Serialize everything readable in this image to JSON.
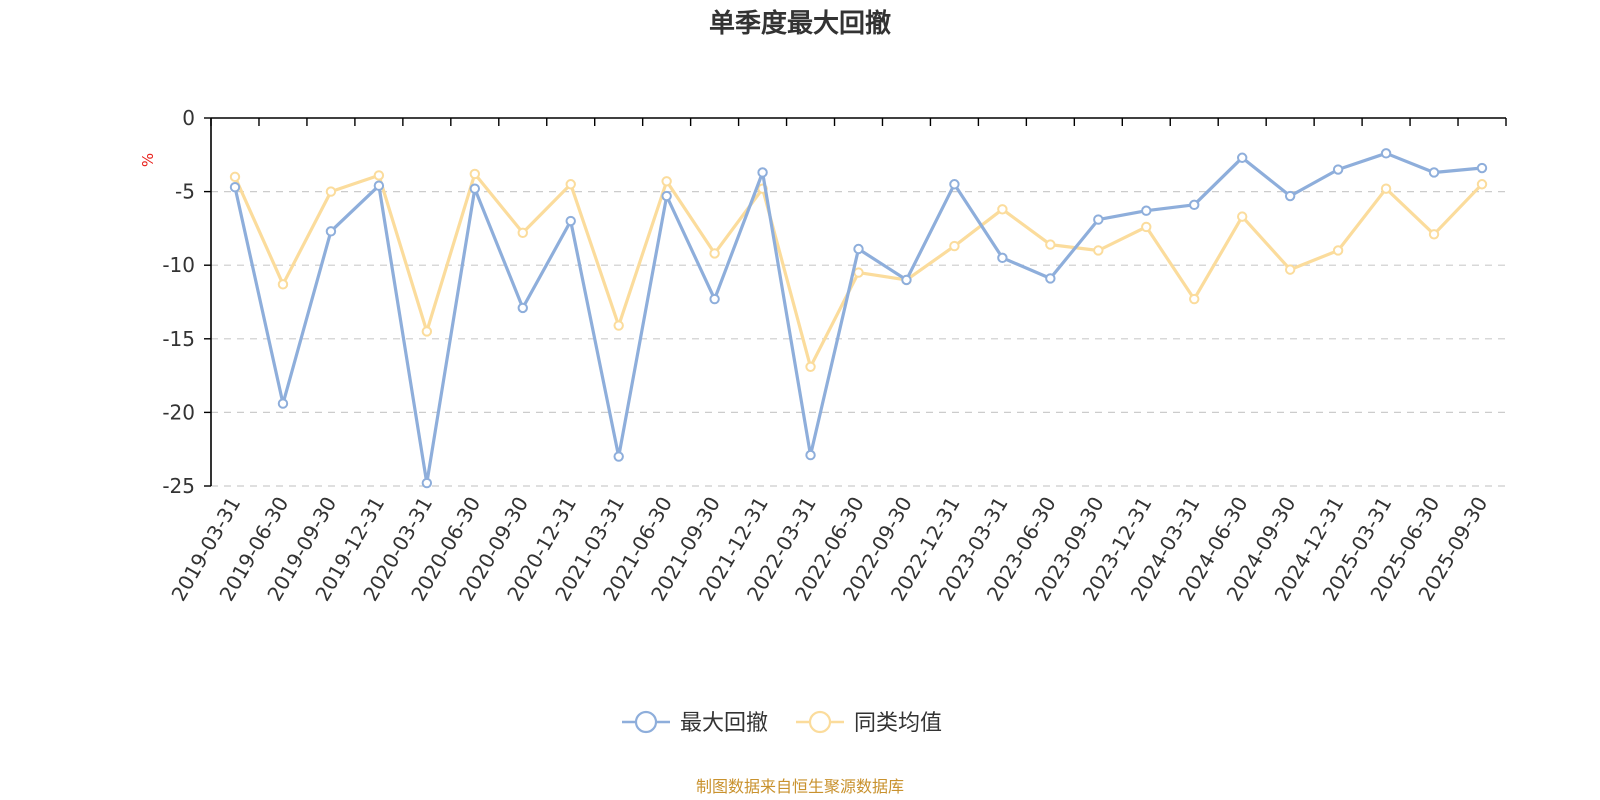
{
  "chart_data": {
    "type": "line",
    "title": "单季度最大回撤",
    "ylabel": "%",
    "ylim": [
      -25,
      0
    ],
    "yticks": [
      0,
      -5,
      -10,
      -15,
      -20,
      -25
    ],
    "grid": true,
    "legend_position": "bottom-center",
    "x": [
      "2019-03-31",
      "2019-06-30",
      "2019-09-30",
      "2019-12-31",
      "2020-03-31",
      "2020-06-30",
      "2020-09-30",
      "2020-12-31",
      "2021-03-31",
      "2021-06-30",
      "2021-09-30",
      "2021-12-31",
      "2022-03-31",
      "2022-06-30",
      "2022-09-30",
      "2022-12-31",
      "2023-03-31",
      "2023-06-30",
      "2023-09-30",
      "2023-12-31",
      "2024-03-31",
      "2024-06-30",
      "2024-09-30",
      "2024-12-31",
      "2025-03-31",
      "2025-06-30",
      "2025-09-30"
    ],
    "series": [
      {
        "name": "最大回撤",
        "color": "#8eaedb",
        "values": [
          -4.7,
          -19.4,
          -7.7,
          -4.6,
          -24.8,
          -4.8,
          -12.9,
          -7.0,
          -23.0,
          -5.3,
          -12.3,
          -3.7,
          -22.9,
          -8.9,
          -11.0,
          -4.5,
          -9.5,
          -10.9,
          -6.9,
          -6.3,
          -5.9,
          -2.7,
          -5.3,
          -3.5,
          -2.4,
          -3.7,
          -3.4
        ]
      },
      {
        "name": "同类均值",
        "color": "#fbdc9c",
        "values": [
          -4.0,
          -11.3,
          -5.0,
          -3.9,
          -14.5,
          -3.8,
          -7.8,
          -4.5,
          -14.1,
          -4.3,
          -9.2,
          -4.8,
          -16.9,
          -10.5,
          -11.0,
          -8.7,
          -6.2,
          -8.6,
          -9.0,
          -7.4,
          -12.3,
          -6.7,
          -10.3,
          -9.0,
          -4.8,
          -7.9,
          -4.5
        ]
      }
    ]
  },
  "footer": {
    "source": "制图数据来自恒生聚源数据库"
  }
}
